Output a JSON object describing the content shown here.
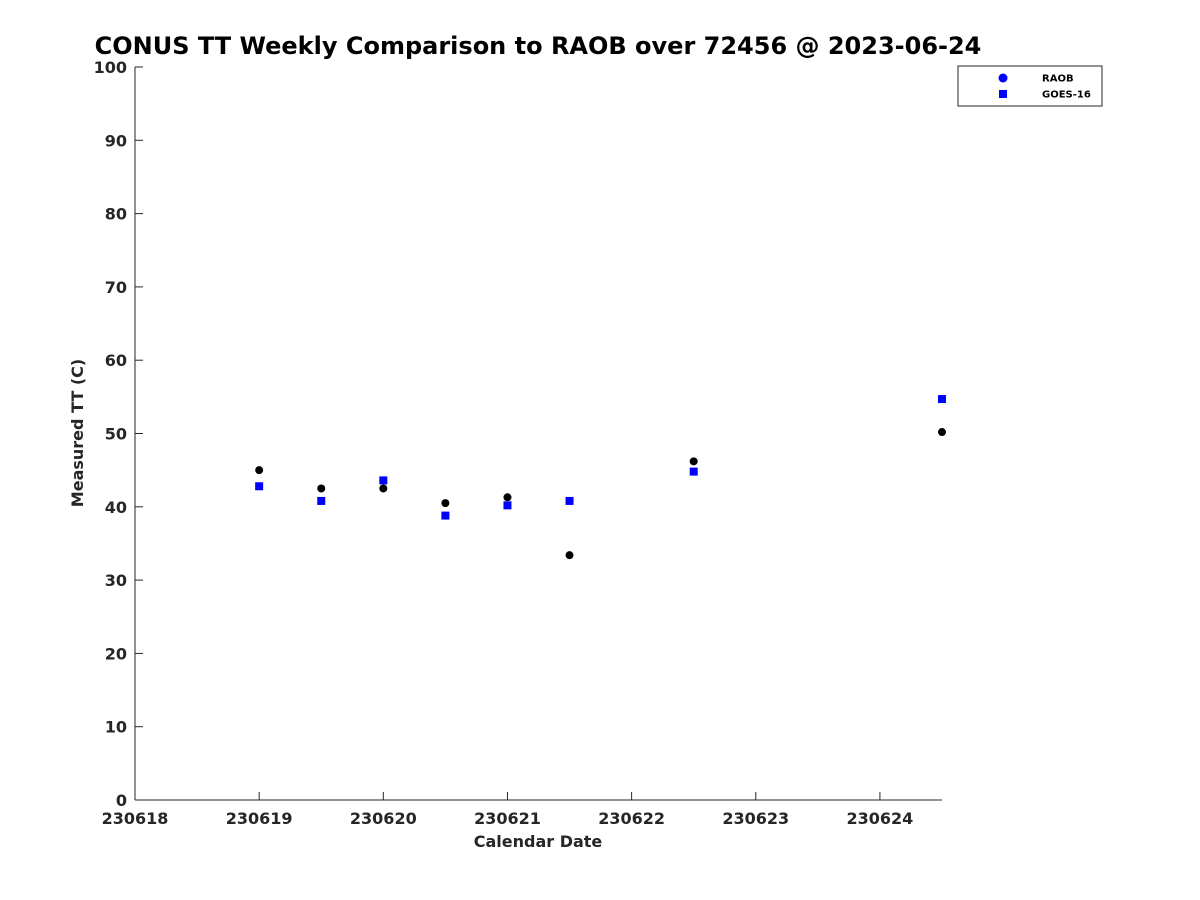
{
  "chart_data": {
    "type": "scatter",
    "title": "CONUS TT Weekly Comparison to RAOB over 72456 @ 2023-06-24",
    "xlabel": "Calendar Date",
    "ylabel": "Measured TT (C)",
    "xlim": [
      230618,
      230624.5
    ],
    "ylim": [
      0,
      100
    ],
    "x_ticks": [
      230618,
      230619,
      230620,
      230621,
      230622,
      230623,
      230624
    ],
    "x_tick_labels": [
      "230618",
      "230619",
      "230620",
      "230621",
      "230622",
      "230623",
      "230624"
    ],
    "y_ticks": [
      0,
      10,
      20,
      30,
      40,
      50,
      60,
      70,
      80,
      90,
      100
    ],
    "y_tick_labels": [
      "0",
      "10",
      "20",
      "30",
      "40",
      "50",
      "60",
      "70",
      "80",
      "90",
      "100"
    ],
    "grid": false,
    "legend_position": "top-right",
    "series": [
      {
        "name": "RAOB",
        "marker": "circle",
        "legend_color": "#0000ff",
        "point_color": "#000000",
        "x": [
          230619,
          230619.5,
          230620,
          230620.5,
          230621,
          230621.5,
          230622.5,
          230624.5
        ],
        "y": [
          45.0,
          42.5,
          42.5,
          40.5,
          41.3,
          33.4,
          46.2,
          50.2
        ]
      },
      {
        "name": "GOES-16",
        "marker": "square",
        "legend_color": "#0000ff",
        "point_color": "#0000ff",
        "x": [
          230619,
          230619.5,
          230620,
          230620.5,
          230621,
          230621.5,
          230622.5,
          230624.5
        ],
        "y": [
          42.8,
          40.8,
          43.6,
          38.8,
          40.2,
          40.8,
          44.8,
          54.7
        ]
      }
    ]
  }
}
